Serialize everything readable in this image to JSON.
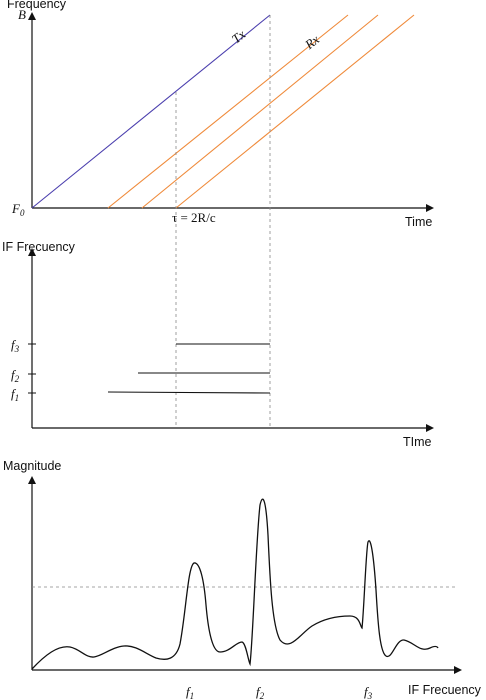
{
  "top_panel": {
    "y_axis_label": "Frequency",
    "y_top_tick": "B",
    "y_origin_label": "F",
    "y_origin_sub": "0",
    "x_axis_label": "Time",
    "tx_label": "Tx",
    "rx_label": "Rx",
    "tau_label": "τ = 2R/c",
    "tx_color": "#4b3fae",
    "rx_color": "#ef8a3a"
  },
  "middle_panel": {
    "y_axis_label": "IF Frecuency",
    "x_axis_label": "TIme",
    "f3": "f",
    "f3_sub": "3",
    "f2": "f",
    "f2_sub": "2",
    "f1": "f",
    "f1_sub": "1"
  },
  "bottom_panel": {
    "y_axis_label": "Magnitude",
    "x_axis_label": "IF Frecuency",
    "f1": "f",
    "f1_sub": "1",
    "f2": "f",
    "f2_sub": "2",
    "f3": "f",
    "f3_sub": "3"
  }
}
